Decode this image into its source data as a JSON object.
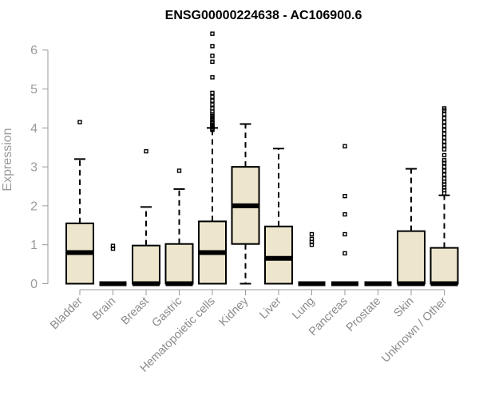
{
  "chart_data": {
    "type": "boxplot",
    "title": "ENSG00000224638 - AC106900.6",
    "ylabel": "Expression",
    "xlabel": "",
    "ylim": [
      0,
      6.5
    ],
    "yticks": [
      0,
      1,
      2,
      3,
      4,
      5,
      6
    ],
    "box_fill": "#ede6cd",
    "box_stroke": "#000000",
    "categories": [
      "Bladder",
      "Brain",
      "Breast",
      "Gastric",
      "Hematopoietic cells",
      "Kidney",
      "Liver",
      "Lung",
      "Pancreas",
      "Prostate",
      "Skin",
      "Unknown / Other"
    ],
    "boxes": [
      {
        "q1": 0,
        "median": 0.8,
        "q3": 1.55,
        "whisker_low": 0,
        "whisker_high": 3.2,
        "outliers": [
          4.15
        ]
      },
      {
        "q1": 0,
        "median": 0,
        "q3": 0,
        "whisker_low": 0,
        "whisker_high": 0,
        "outliers": [
          0.9,
          0.97
        ]
      },
      {
        "q1": 0,
        "median": 0,
        "q3": 0.98,
        "whisker_low": 0,
        "whisker_high": 1.97,
        "outliers": [
          3.4
        ]
      },
      {
        "q1": 0,
        "median": 0,
        "q3": 1.02,
        "whisker_low": 0,
        "whisker_high": 2.43,
        "outliers": [
          2.9
        ]
      },
      {
        "q1": 0,
        "median": 0.8,
        "q3": 1.6,
        "whisker_low": 0,
        "whisker_high": 4.0,
        "outliers": [
          3.95,
          3.98,
          4.02,
          4.05,
          4.08,
          4.12,
          4.15,
          4.2,
          4.25,
          4.3,
          4.35,
          4.42,
          4.5,
          4.6,
          4.7,
          4.8,
          4.9,
          5.3,
          5.7,
          5.85,
          6.1,
          6.42
        ]
      },
      {
        "q1": 1.02,
        "median": 2.0,
        "q3": 3.0,
        "whisker_low": 0,
        "whisker_high": 4.1,
        "outliers": []
      },
      {
        "q1": 0,
        "median": 0.65,
        "q3": 1.47,
        "whisker_low": 0,
        "whisker_high": 3.47,
        "outliers": []
      },
      {
        "q1": 0,
        "median": 0,
        "q3": 0,
        "whisker_low": 0,
        "whisker_high": 0,
        "outliers": [
          1.0,
          1.07,
          1.15,
          1.27
        ]
      },
      {
        "q1": 0,
        "median": 0,
        "q3": 0,
        "whisker_low": 0,
        "whisker_high": 0,
        "outliers": [
          0.78,
          1.27,
          1.78,
          2.25,
          3.53
        ]
      },
      {
        "q1": 0,
        "median": 0,
        "q3": 0,
        "whisker_low": 0,
        "whisker_high": 0,
        "outliers": []
      },
      {
        "q1": 0,
        "median": 0,
        "q3": 1.35,
        "whisker_low": 0,
        "whisker_high": 2.95,
        "outliers": []
      },
      {
        "q1": 0,
        "median": 0,
        "q3": 0.92,
        "whisker_low": 0,
        "whisker_high": 2.27,
        "outliers": [
          2.32,
          2.4,
          2.47,
          2.55,
          2.62,
          2.7,
          2.8,
          2.9,
          3.0,
          3.1,
          3.17,
          3.3,
          3.45,
          3.55,
          3.65,
          3.75,
          3.85,
          3.95,
          4.05,
          4.15,
          4.25,
          4.35,
          4.45,
          4.5
        ]
      }
    ]
  }
}
